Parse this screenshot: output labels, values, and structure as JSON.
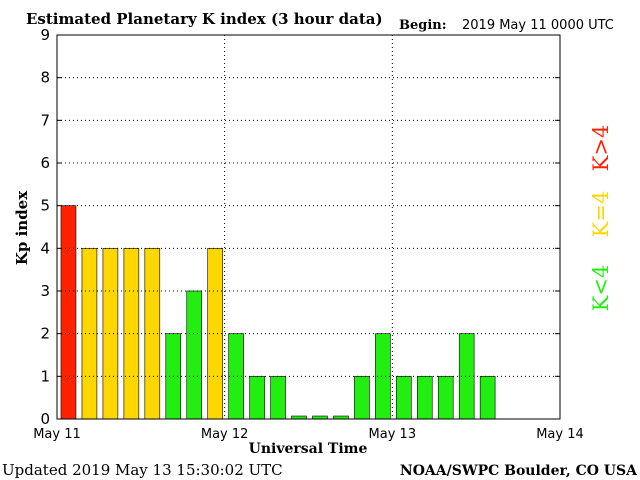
{
  "header": {
    "title": "Estimated Planetary K index (3 hour data)",
    "begin_label": "Begin:",
    "begin_value": "2019 May 11 0000 UTC"
  },
  "footer": {
    "updated": "Updated 2019 May 13 15:30:02 UTC",
    "source": "NOAA/SWPC Boulder, CO USA"
  },
  "legend": {
    "high": "K>4",
    "mid": "K=4",
    "low": "K<4"
  },
  "colors": {
    "high": "#ff2200",
    "mid": "#ffd700",
    "low": "#22ee11",
    "grid": "#000000",
    "frame": "#000000"
  },
  "chart_data": {
    "type": "bar",
    "title": "Estimated Planetary K index (3 hour data)",
    "xlabel": "Universal Time",
    "ylabel": "Kp index",
    "ylim": [
      0,
      9
    ],
    "yticks": [
      "0",
      "1",
      "2",
      "3",
      "4",
      "5",
      "6",
      "7",
      "8",
      "9"
    ],
    "xticks": [
      "May 11",
      "May 12",
      "May 13",
      "May 14"
    ],
    "slots_per_day": 8,
    "days": 3,
    "grid": true,
    "values": [
      5,
      4,
      4,
      4,
      4,
      2,
      3,
      4,
      2,
      1,
      1,
      0.07,
      0.07,
      0.07,
      1,
      2,
      1,
      1,
      1,
      2,
      1
    ]
  }
}
